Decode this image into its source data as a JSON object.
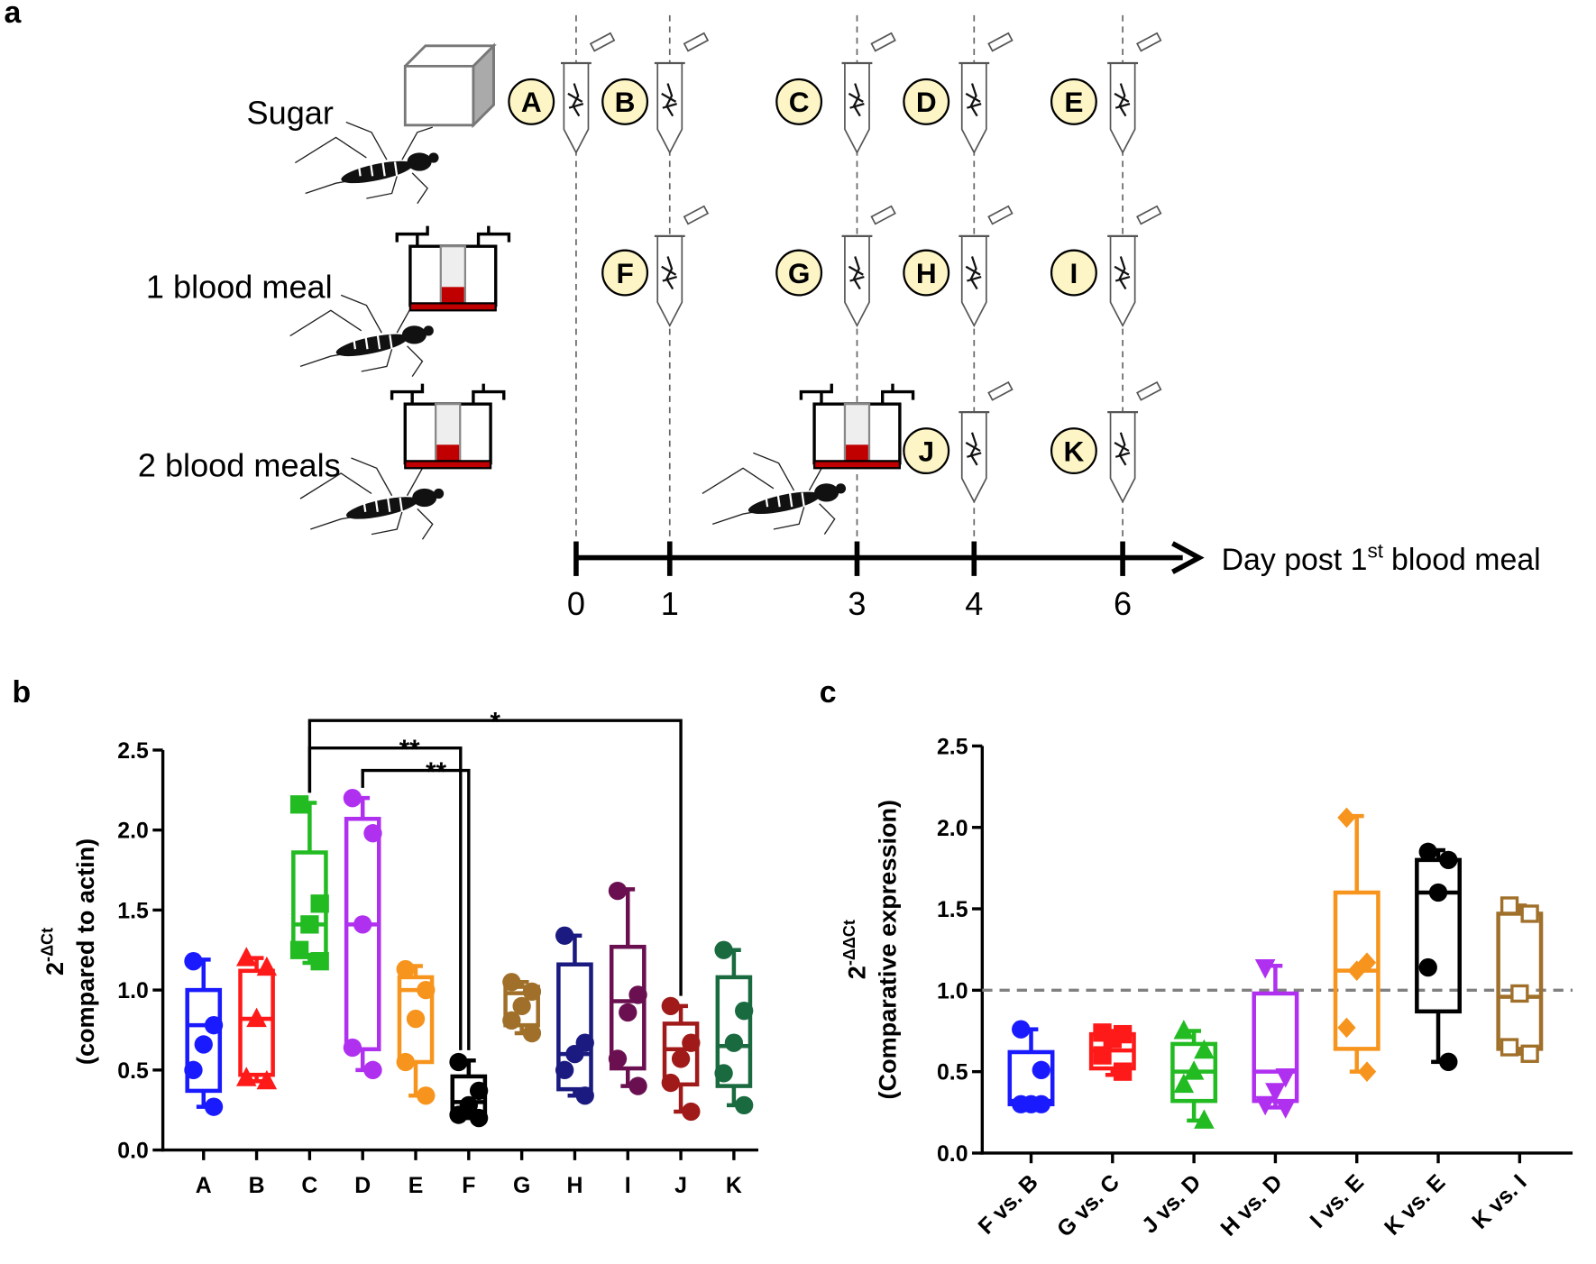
{
  "diagram": {
    "panel_label": "a",
    "groups": [
      "Sugar",
      "1 blood meal",
      "2 blood meals"
    ],
    "samples": [
      "A",
      "B",
      "C",
      "D",
      "E",
      "F",
      "G",
      "H",
      "I",
      "J",
      "K"
    ],
    "time_ticks": [
      0,
      1,
      3,
      4,
      6
    ],
    "time_label": {
      "text": "Day post 1",
      "superscript": "st",
      "text_after": "blood meal"
    }
  },
  "chart_data": [
    {
      "type": "box",
      "panel_label": "b",
      "y_label": {
        "base": "2",
        "superscript": "-ΔCt",
        "line2": "(compared to actin)"
      },
      "categories": [
        "A",
        "B",
        "C",
        "D",
        "E",
        "F",
        "G",
        "H",
        "I",
        "J",
        "K"
      ],
      "ylim": [
        0,
        2.5
      ],
      "yticks": [
        {
          "value": 0,
          "label": "0.0"
        },
        {
          "value": 0.5,
          "label": "0.5"
        },
        {
          "value": 1,
          "label": "1.0"
        },
        {
          "value": 1.5,
          "label": "1.5"
        },
        {
          "value": 2,
          "label": "2.0"
        },
        {
          "value": 2.5,
          "label": "2.5"
        }
      ],
      "boxes": [
        {
          "color": "#1a1aff",
          "marker": "circle",
          "whisker_low": 0.27,
          "q1": 0.37,
          "median": 0.78,
          "q3": 1.0,
          "whisker_high": 1.19,
          "points": [
            1.18,
            0.78,
            0.66,
            0.5,
            0.27
          ]
        },
        {
          "color": "#ff1a1a",
          "marker": "triangle",
          "whisker_low": 0.43,
          "q1": 0.47,
          "median": 0.82,
          "q3": 1.12,
          "whisker_high": 1.2,
          "points": [
            1.2,
            1.14,
            0.82,
            0.45,
            0.43
          ]
        },
        {
          "color": "#22bb22",
          "marker": "square",
          "whisker_low": 1.17,
          "q1": 1.22,
          "median": 1.41,
          "q3": 1.86,
          "whisker_high": 2.17,
          "points": [
            2.16,
            1.54,
            1.41,
            1.25,
            1.18
          ]
        },
        {
          "color": "#b030f0",
          "marker": "circle",
          "whisker_low": 0.5,
          "q1": 0.63,
          "median": 1.41,
          "q3": 2.07,
          "whisker_high": 2.2,
          "points": [
            2.2,
            1.98,
            1.41,
            0.64,
            0.5
          ]
        },
        {
          "color": "#f7941d",
          "marker": "circle",
          "whisker_low": 0.34,
          "q1": 0.55,
          "median": 1.0,
          "q3": 1.08,
          "whisker_high": 1.15,
          "points": [
            1.13,
            1.0,
            0.82,
            0.55,
            0.34
          ]
        },
        {
          "color": "#000000",
          "marker": "circle",
          "whisker_low": 0.2,
          "q1": 0.22,
          "median": 0.3,
          "q3": 0.46,
          "whisker_high": 0.56,
          "points": [
            0.55,
            0.37,
            0.28,
            0.22,
            0.2
          ]
        },
        {
          "color": "#a0702a",
          "marker": "circle",
          "whisker_low": 0.73,
          "q1": 0.78,
          "median": 0.98,
          "q3": 1.02,
          "whisker_high": 1.05,
          "points": [
            1.05,
            0.99,
            0.9,
            0.81,
            0.73
          ]
        },
        {
          "color": "#1a1a80",
          "marker": "circle",
          "whisker_low": 0.34,
          "q1": 0.38,
          "median": 0.6,
          "q3": 1.16,
          "whisker_high": 1.34,
          "points": [
            1.34,
            0.67,
            0.6,
            0.5,
            0.34
          ]
        },
        {
          "color": "#6a1050",
          "marker": "circle",
          "whisker_low": 0.4,
          "q1": 0.51,
          "median": 0.93,
          "q3": 1.27,
          "whisker_high": 1.63,
          "points": [
            1.62,
            0.97,
            0.86,
            0.57,
            0.4
          ]
        },
        {
          "color": "#a01a1a",
          "marker": "circle",
          "whisker_low": 0.24,
          "q1": 0.41,
          "median": 0.63,
          "q3": 0.79,
          "whisker_high": 0.9,
          "points": [
            0.9,
            0.67,
            0.57,
            0.42,
            0.24
          ]
        },
        {
          "color": "#1a6a40",
          "marker": "circle",
          "whisker_low": 0.28,
          "q1": 0.4,
          "median": 0.65,
          "q3": 1.08,
          "whisker_high": 1.25,
          "points": [
            1.25,
            0.87,
            0.67,
            0.48,
            0.28
          ]
        }
      ],
      "significance": [
        {
          "label": "*",
          "between": [
            "C",
            "J"
          ]
        },
        {
          "label": "**",
          "between": [
            "C",
            "F"
          ]
        },
        {
          "label": "**",
          "between": [
            "D",
            "F"
          ]
        }
      ]
    },
    {
      "type": "box",
      "panel_label": "c",
      "y_label": {
        "base": "2",
        "superscript": "-ΔΔCt",
        "line2": "(Comparative expression)"
      },
      "categories": [
        "F vs. B",
        "G vs. C",
        "J vs. D",
        "H vs. D",
        "I vs. E",
        "K vs. E",
        "K vs. I"
      ],
      "ylim": [
        0,
        2.5
      ],
      "yticks": [
        {
          "value": 0,
          "label": "0.0"
        },
        {
          "value": 0.5,
          "label": "0.5"
        },
        {
          "value": 1,
          "label": "1.0"
        },
        {
          "value": 1.5,
          "label": "1.5"
        },
        {
          "value": 2,
          "label": "2.0"
        },
        {
          "value": 2.5,
          "label": "2.5"
        }
      ],
      "reference_line": 1,
      "reference_line_color": "#808080",
      "boxes": [
        {
          "color": "#1a1aff",
          "marker": "circle",
          "whisker_low": 0.3,
          "q1": 0.3,
          "median": 0.32,
          "q3": 0.62,
          "whisker_high": 0.76,
          "points": [
            0.76,
            0.51,
            0.3,
            0.3,
            0.3
          ]
        },
        {
          "color": "#ff1a1a",
          "marker": "square",
          "whisker_low": 0.48,
          "q1": 0.52,
          "median": 0.63,
          "q3": 0.73,
          "whisker_high": 0.75,
          "points": [
            0.74,
            0.73,
            0.7,
            0.6,
            0.5
          ]
        },
        {
          "color": "#22bb22",
          "marker": "triangle",
          "whisker_low": 0.2,
          "q1": 0.32,
          "median": 0.5,
          "q3": 0.67,
          "whisker_high": 0.75,
          "points": [
            0.75,
            0.63,
            0.5,
            0.42,
            0.2
          ]
        },
        {
          "color": "#b030f0",
          "marker": "triangle-down",
          "whisker_low": 0.28,
          "q1": 0.32,
          "median": 0.5,
          "q3": 0.98,
          "whisker_high": 1.15,
          "points": [
            1.14,
            0.47,
            0.38,
            0.3,
            0.28
          ]
        },
        {
          "color": "#f7941d",
          "marker": "diamond",
          "whisker_low": 0.5,
          "q1": 0.64,
          "median": 1.12,
          "q3": 1.6,
          "whisker_high": 2.07,
          "points": [
            2.06,
            1.17,
            1.12,
            0.77,
            0.5
          ]
        },
        {
          "color": "#000000",
          "marker": "circle",
          "whisker_low": 0.56,
          "q1": 0.87,
          "median": 1.6,
          "q3": 1.8,
          "whisker_high": 1.86,
          "points": [
            1.85,
            1.8,
            1.6,
            1.14,
            0.56
          ]
        },
        {
          "color": "#a0702a",
          "marker": "open-square",
          "whisker_low": 0.61,
          "q1": 0.64,
          "median": 0.96,
          "q3": 1.47,
          "whisker_high": 1.52,
          "points": [
            1.52,
            1.47,
            0.98,
            0.65,
            0.61
          ]
        }
      ]
    }
  ]
}
